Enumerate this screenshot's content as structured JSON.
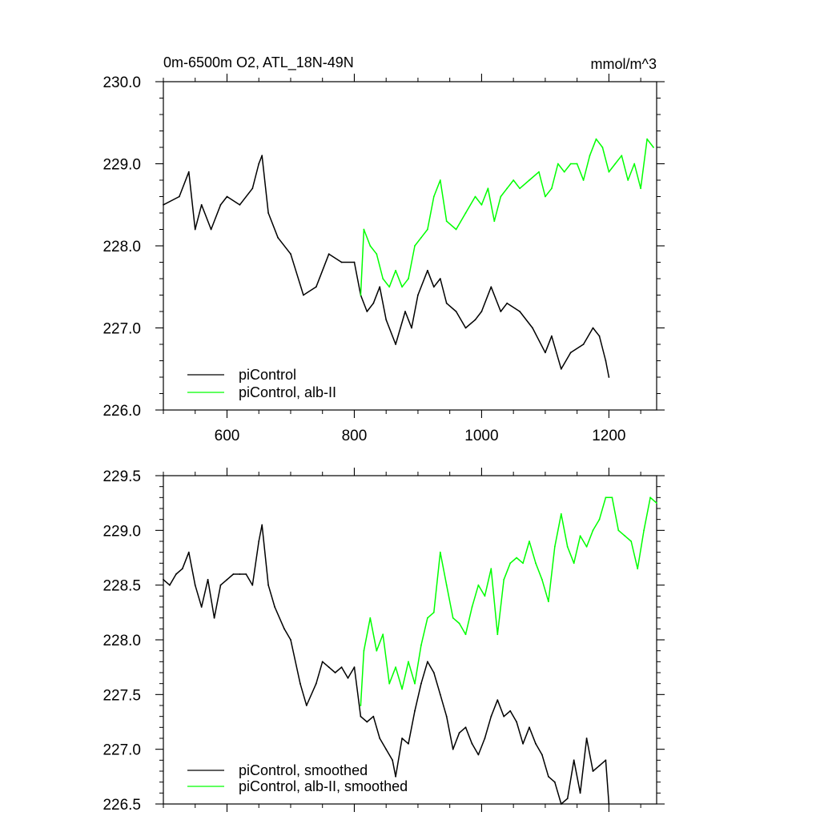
{
  "chart_data": [
    {
      "type": "line",
      "title": "0m-6500m O2, ATL_18N-49N",
      "units": "mmol/m^3",
      "xlim": [
        500,
        1275
      ],
      "ylim": [
        226.0,
        230.0
      ],
      "x_ticks": [
        600,
        800,
        1000,
        1200
      ],
      "x_tick_labels": [
        "600",
        "800",
        "1000",
        "1200"
      ],
      "y_ticks": [
        226.0,
        227.0,
        228.0,
        229.0,
        230.0
      ],
      "y_tick_labels": [
        "226.0",
        "227.0",
        "228.0",
        "229.0",
        "230.0"
      ],
      "grid": false,
      "legend_position": "bottom-left",
      "series": [
        {
          "name": "piControl",
          "color": "#000000",
          "x": [
            500,
            525,
            540,
            550,
            560,
            575,
            590,
            600,
            620,
            640,
            650,
            655,
            665,
            680,
            700,
            720,
            740,
            760,
            780,
            800,
            810,
            820,
            830,
            840,
            850,
            865,
            880,
            890,
            900,
            915,
            925,
            935,
            945,
            960,
            975,
            990,
            1000,
            1015,
            1030,
            1040,
            1060,
            1080,
            1100,
            1110,
            1125,
            1140,
            1160,
            1175,
            1185,
            1195,
            1200
          ],
          "values": [
            228.5,
            228.6,
            228.9,
            228.2,
            228.5,
            228.2,
            228.5,
            228.6,
            228.5,
            228.7,
            229.0,
            229.1,
            228.4,
            228.1,
            227.9,
            227.4,
            227.5,
            227.9,
            227.8,
            227.8,
            227.4,
            227.2,
            227.3,
            227.5,
            227.1,
            226.8,
            227.2,
            227.0,
            227.4,
            227.7,
            227.5,
            227.6,
            227.3,
            227.2,
            227.0,
            227.1,
            227.2,
            227.5,
            227.2,
            227.3,
            227.2,
            227.0,
            226.7,
            226.9,
            226.5,
            226.7,
            226.8,
            227.0,
            226.9,
            226.6,
            226.4
          ]
        },
        {
          "name": "piControl, alb-II",
          "color": "#00ff00",
          "x": [
            810,
            815,
            825,
            835,
            845,
            855,
            865,
            875,
            885,
            895,
            905,
            915,
            925,
            935,
            945,
            960,
            975,
            990,
            1000,
            1010,
            1020,
            1030,
            1040,
            1050,
            1060,
            1075,
            1090,
            1100,
            1110,
            1120,
            1130,
            1140,
            1150,
            1160,
            1170,
            1180,
            1190,
            1200,
            1210,
            1220,
            1230,
            1240,
            1250,
            1260,
            1270
          ],
          "values": [
            227.4,
            228.2,
            228.0,
            227.9,
            227.6,
            227.5,
            227.7,
            227.5,
            227.6,
            228.0,
            228.1,
            228.2,
            228.6,
            228.8,
            228.3,
            228.2,
            228.4,
            228.6,
            228.5,
            228.7,
            228.3,
            228.6,
            228.7,
            228.8,
            228.7,
            228.8,
            228.9,
            228.6,
            228.7,
            229.0,
            228.9,
            229.0,
            229.0,
            228.8,
            229.1,
            229.3,
            229.2,
            228.9,
            229.0,
            229.1,
            228.8,
            229.0,
            228.7,
            229.3,
            229.2
          ]
        }
      ]
    },
    {
      "type": "line",
      "xlim": [
        500,
        1275
      ],
      "ylim": [
        226.5,
        229.5
      ],
      "x_ticks": [
        600,
        800,
        1000,
        1200
      ],
      "y_ticks": [
        226.5,
        227.0,
        227.5,
        228.0,
        228.5,
        229.0,
        229.5
      ],
      "y_tick_labels": [
        "226.5",
        "227.0",
        "227.5",
        "228.0",
        "228.5",
        "229.0",
        "229.5"
      ],
      "grid": false,
      "legend_position": "bottom-left",
      "series": [
        {
          "name": "piControl, smoothed",
          "color": "#000000",
          "x": [
            500,
            510,
            520,
            530,
            540,
            550,
            560,
            570,
            580,
            590,
            600,
            610,
            620,
            630,
            640,
            650,
            655,
            665,
            675,
            690,
            700,
            715,
            725,
            740,
            750,
            760,
            770,
            780,
            790,
            800,
            810,
            820,
            830,
            840,
            850,
            860,
            865,
            875,
            885,
            895,
            905,
            915,
            925,
            935,
            945,
            955,
            965,
            975,
            985,
            995,
            1005,
            1015,
            1025,
            1035,
            1045,
            1055,
            1065,
            1075,
            1085,
            1095,
            1105,
            1115,
            1125,
            1135,
            1145,
            1155,
            1165,
            1175,
            1185,
            1195,
            1200
          ],
          "values": [
            228.55,
            228.5,
            228.6,
            228.65,
            228.8,
            228.5,
            228.3,
            228.55,
            228.2,
            228.5,
            228.55,
            228.6,
            228.6,
            228.6,
            228.5,
            228.9,
            229.05,
            228.5,
            228.3,
            228.1,
            228.0,
            227.6,
            227.4,
            227.6,
            227.8,
            227.75,
            227.7,
            227.75,
            227.65,
            227.75,
            227.3,
            227.25,
            227.3,
            227.1,
            227.0,
            226.9,
            226.75,
            227.1,
            227.05,
            227.35,
            227.6,
            227.8,
            227.7,
            227.5,
            227.3,
            227.0,
            227.15,
            227.2,
            227.05,
            226.95,
            227.1,
            227.3,
            227.45,
            227.3,
            227.35,
            227.25,
            227.05,
            227.2,
            227.05,
            226.95,
            226.75,
            226.7,
            226.5,
            226.55,
            226.9,
            226.6,
            227.1,
            226.8,
            226.85,
            226.9,
            226.5
          ]
        },
        {
          "name": "piControl, alb-II, smoothed",
          "color": "#00ff00",
          "x": [
            810,
            815,
            825,
            835,
            845,
            855,
            865,
            875,
            885,
            895,
            905,
            915,
            925,
            935,
            945,
            955,
            965,
            975,
            985,
            995,
            1005,
            1015,
            1025,
            1035,
            1045,
            1055,
            1065,
            1075,
            1085,
            1095,
            1105,
            1115,
            1125,
            1135,
            1145,
            1155,
            1165,
            1175,
            1185,
            1195,
            1205,
            1215,
            1225,
            1235,
            1245,
            1255,
            1265,
            1275
          ],
          "values": [
            227.4,
            227.9,
            228.2,
            227.9,
            228.05,
            227.6,
            227.75,
            227.55,
            227.8,
            227.6,
            227.95,
            228.2,
            228.25,
            228.8,
            228.5,
            228.2,
            228.15,
            228.05,
            228.3,
            228.5,
            228.4,
            228.65,
            228.05,
            228.55,
            228.7,
            228.75,
            228.7,
            228.9,
            228.7,
            228.55,
            228.35,
            228.85,
            229.15,
            228.85,
            228.7,
            228.95,
            228.85,
            229.0,
            229.1,
            229.3,
            229.3,
            229.0,
            228.95,
            228.9,
            228.65,
            229.0,
            229.3,
            229.25
          ]
        }
      ]
    }
  ]
}
